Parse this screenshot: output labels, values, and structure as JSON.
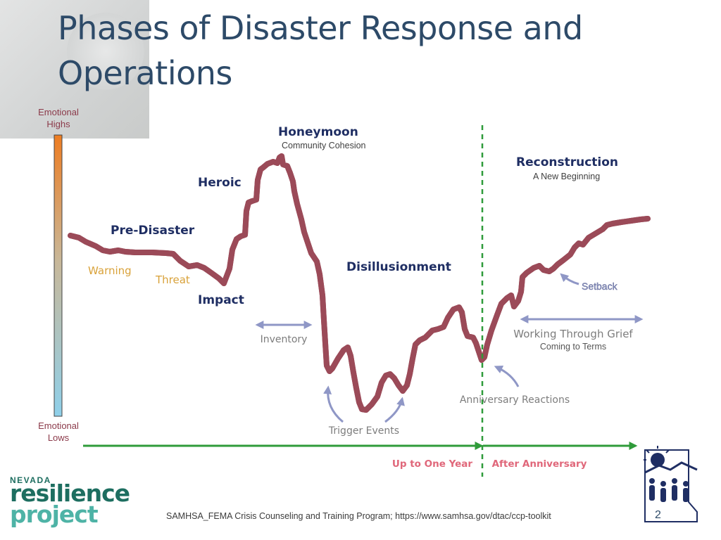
{
  "slide": {
    "title": "Phases of Disaster Response and Operations",
    "citation": "SAMHSA_FEMA Crisis Counseling and Training Program; https://www.samhsa.gov/dtac/ccp-toolkit",
    "page_number": "2"
  },
  "axis": {
    "high_label_line1": "Emotional",
    "high_label_line2": "Highs",
    "low_label_line1": "Emotional",
    "low_label_line2": "Lows"
  },
  "phases": {
    "pre_disaster": "Pre-Disaster",
    "warning": "Warning",
    "threat": "Threat",
    "impact": "Impact",
    "heroic": "Heroic",
    "honeymoon": "Honeymoon",
    "honeymoon_sub": "Community Cohesion",
    "disillusionment": "Disillusionment",
    "reconstruction": "Reconstruction",
    "reconstruction_sub": "A New Beginning"
  },
  "annotations": {
    "inventory": "Inventory",
    "trigger_events": "Trigger Events",
    "anniversary_reactions": "Anniversary Reactions",
    "working_through_grief": "Working Through Grief",
    "coming_to_terms": "Coming to Terms",
    "setback": "Setback"
  },
  "timeline": {
    "up_to_one_year": "Up to One Year",
    "after_anniversary": "After Anniversary"
  },
  "logo": {
    "state": "NEVADA",
    "line1": "resilience",
    "line2": "project"
  },
  "colors": {
    "title": "#2d4a68",
    "phase_label": "#1f2e63",
    "sub_label": "#404040",
    "curve_fill": "#e0677a",
    "curve_outline": "#9b4a58",
    "warning_label": "#d9a23a",
    "annotation": "#8f97c6",
    "timeline": "#2f9b3a",
    "timeline_label": "#e0677a",
    "axis_label": "#8b3a4a"
  }
}
